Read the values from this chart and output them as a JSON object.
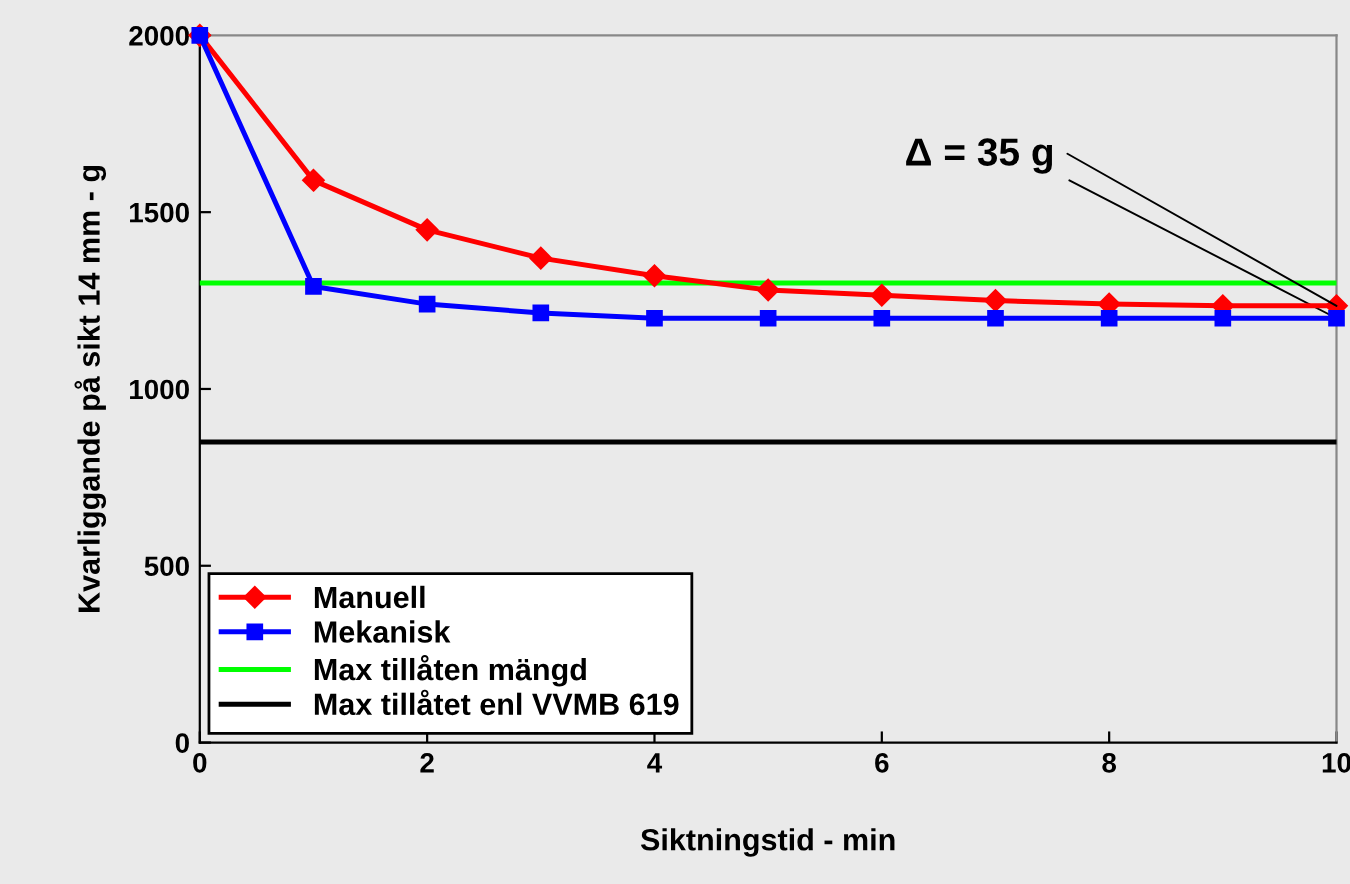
{
  "chart_data": {
    "type": "line",
    "xlabel": "Siktningstid - min",
    "ylabel": "Kvarliggande på sikt 14 mm - g",
    "x": [
      0,
      1,
      2,
      3,
      4,
      5,
      6,
      7,
      8,
      9,
      10
    ],
    "series": [
      {
        "name": "Manuell",
        "color": "#ff0000",
        "marker": "diamond",
        "values": [
          2000,
          1590,
          1450,
          1370,
          1320,
          1280,
          1265,
          1250,
          1240,
          1235,
          1235
        ]
      },
      {
        "name": "Mekanisk",
        "color": "#0000ff",
        "marker": "square",
        "values": [
          2000,
          1290,
          1240,
          1215,
          1200,
          1200,
          1200,
          1200,
          1200,
          1200,
          1200
        ]
      }
    ],
    "ref_lines": [
      {
        "axis": "y",
        "value": 1300,
        "label": "Max tillåten mängd",
        "color": "#00ff00"
      },
      {
        "axis": "y",
        "value": 850,
        "label": "Max tillåtet enl VVMB 619",
        "color": "#000000"
      }
    ],
    "annotations": [
      {
        "text": "Δ = 35 g",
        "x": 10,
        "y": 1235
      }
    ],
    "xlim": [
      0,
      10
    ],
    "xticks": [
      0,
      2,
      4,
      6,
      8,
      10
    ],
    "ylim": [
      0,
      2000
    ],
    "yticks": [
      0,
      500,
      1000,
      1500,
      2000
    ],
    "grid": false,
    "legend": "bottom left",
    "line_style": "solid"
  }
}
